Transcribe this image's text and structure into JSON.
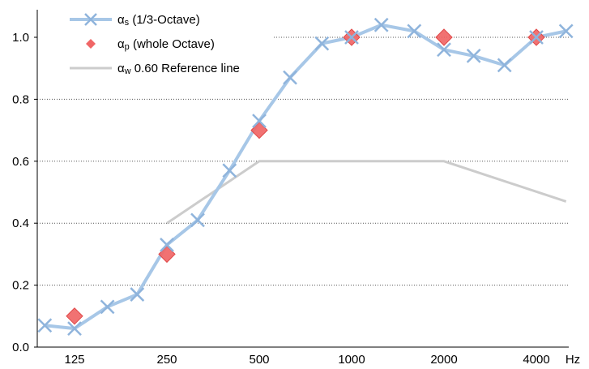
{
  "chart_data": {
    "type": "line",
    "title": "",
    "xlabel": "Hz",
    "ylabel": "",
    "xscale": "log",
    "ylim": [
      0,
      1.0
    ],
    "y_ticks": [
      "0.0",
      "0.2",
      "0.4",
      "0.6",
      "0.8",
      "1.0"
    ],
    "y_tick_values": [
      0,
      0.2,
      0.4,
      0.6,
      0.8,
      1.0
    ],
    "x_ticks": [
      "125",
      "250",
      "500",
      "1000",
      "2000",
      "4000"
    ],
    "x_tick_values": [
      125,
      250,
      500,
      1000,
      2000,
      4000
    ],
    "grid": {
      "horizontal": true,
      "style": "dotted"
    },
    "legend_position": "top-left",
    "series": [
      {
        "name": "αs (1/3-Octave)",
        "legend_main": "α",
        "legend_sub": "s",
        "legend_rest": "(1/3-Octave)",
        "style": "line-with-x-markers",
        "color": "#a7c7e7",
        "marker_color": "#8fb4dc",
        "x": [
          100,
          125,
          160,
          200,
          250,
          315,
          400,
          500,
          630,
          800,
          1000,
          1250,
          1600,
          2000,
          2500,
          3150,
          4000,
          5000
        ],
        "values": [
          0.07,
          0.06,
          0.13,
          0.17,
          0.33,
          0.41,
          0.57,
          0.73,
          0.87,
          0.98,
          1.0,
          1.04,
          1.02,
          0.96,
          0.94,
          0.91,
          1.0,
          1.02
        ]
      },
      {
        "name": "αp (whole Octave)",
        "legend_main": "α",
        "legend_sub": "p",
        "legend_rest": "(whole Octave)",
        "style": "diamond-markers",
        "color": "#f06666",
        "x": [
          125,
          250,
          500,
          1000,
          2000,
          4000
        ],
        "values": [
          0.1,
          0.3,
          0.7,
          1.0,
          1.0,
          1.0
        ]
      },
      {
        "name": "αw 0.60 Reference line",
        "legend_main": "α",
        "legend_sub": "w",
        "legend_rest": "0.60 Reference line",
        "style": "line",
        "color": "#cccccc",
        "x": [
          250,
          500,
          1000,
          2000,
          5000
        ],
        "values": [
          0.4,
          0.6,
          0.6,
          0.6,
          0.47
        ]
      }
    ]
  }
}
